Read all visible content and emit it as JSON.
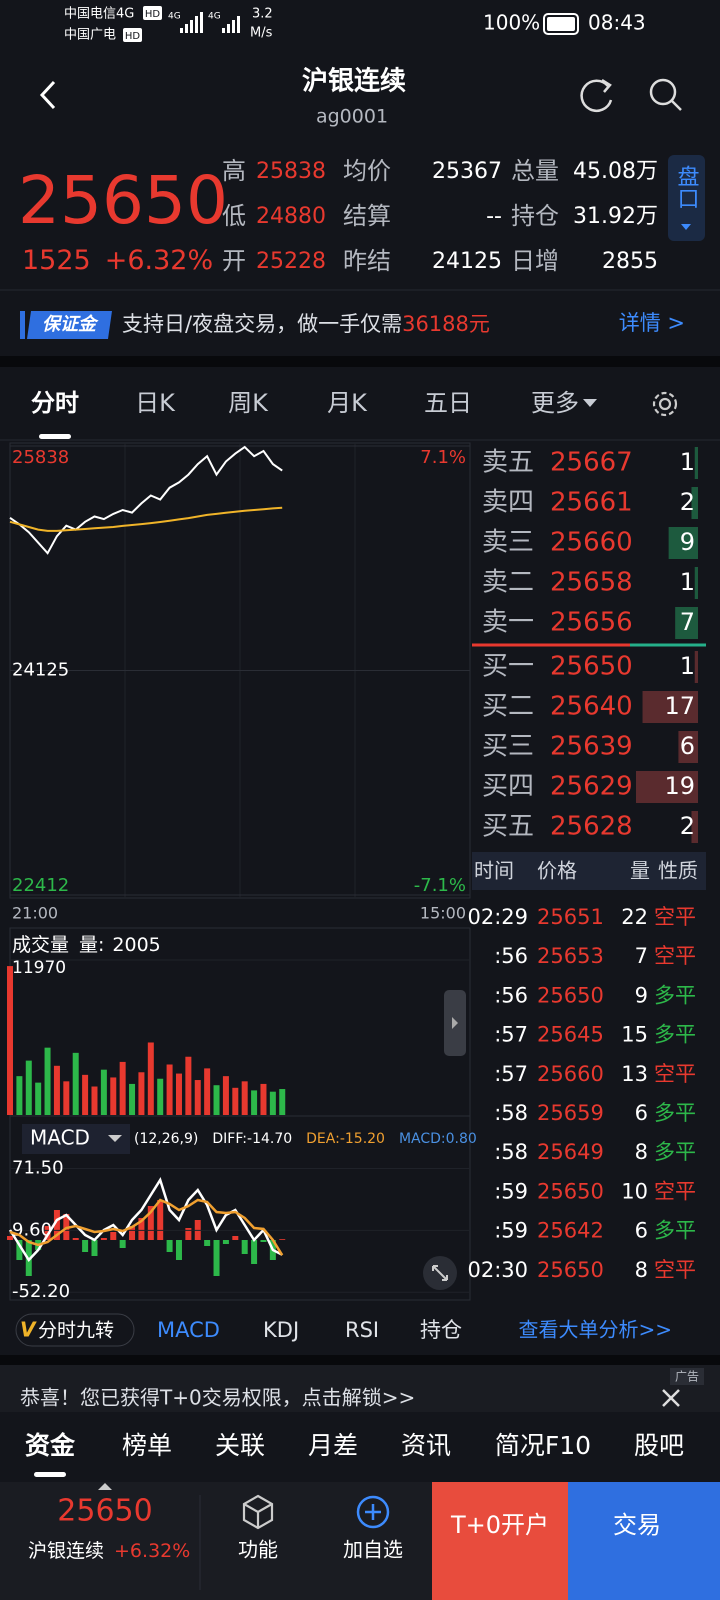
{
  "status_bar": {
    "carrier1": "中国电信4G",
    "carrier1_tag": "HD",
    "carrier2": "中国广电",
    "carrier2_tag": "HD",
    "net_speed": "3.2",
    "net_unit": "M/s",
    "battery": "100%",
    "time": "08:43"
  },
  "header": {
    "title": "沪银连续",
    "code": "ag0001"
  },
  "quote": {
    "price": 25650,
    "price_color": "#e8392f",
    "change": 1525,
    "change_pct": "+6.32%",
    "stats": [
      {
        "value_color": "#e8392f",
        "items": [
          {
            "label": "高",
            "value": 25838
          },
          {
            "label": "低",
            "value": 24880
          },
          {
            "label": "开",
            "value": 25228
          }
        ]
      },
      {
        "value_color": "#ffffff",
        "items": [
          {
            "label": "均价",
            "value": 25367
          },
          {
            "label": "结算",
            "value": "--"
          },
          {
            "label": "昨结",
            "value": 24125
          }
        ]
      },
      {
        "value_color": "#ffffff",
        "items": [
          {
            "label": "总量",
            "value": "45.08万"
          },
          {
            "label": "持仓",
            "value": "31.92万"
          },
          {
            "label": "日增",
            "value": 2855
          }
        ]
      }
    ],
    "panel_button": "盘口"
  },
  "margin_banner": {
    "badge": "保证金",
    "text": "支持日/夜盘交易，做一手仅需",
    "amount": "36188元",
    "link": "详情 >"
  },
  "tabs": {
    "items": [
      "分时",
      "日K",
      "周K",
      "月K",
      "五日",
      "更多"
    ],
    "active": 0
  },
  "charts": {
    "intraday": {
      "type": "line",
      "ylim": [
        22412,
        25838
      ],
      "yticks": [
        25838,
        24125,
        22412
      ],
      "tick_colors": [
        "#e8392f",
        "#ffffff",
        "#2db84a"
      ],
      "y2lim": [
        -7.1,
        7.1
      ],
      "y2ticks": [
        {
          "value": 7.1,
          "label": "7.1%"
        },
        {
          "value": -7.1,
          "label": "-7.1%"
        }
      ],
      "y2tick_colors": [
        "#e8392f",
        "#2db84a"
      ],
      "x_labels": [
        "21:00",
        "15:00"
      ],
      "series": [
        {
          "color": "#ffffff",
          "values": [
            25290,
            25240,
            25180,
            25100,
            25020,
            25150,
            25230,
            25200,
            25260,
            25300,
            25280,
            25320,
            25350,
            25330,
            25400,
            25460,
            25430,
            25520,
            25560,
            25620,
            25700,
            25760,
            25620,
            25720,
            25780,
            25830,
            25760,
            25800,
            25700,
            25650,
            null,
            null,
            null,
            null,
            null,
            null,
            null,
            null,
            null,
            null,
            null,
            null,
            null,
            null,
            null,
            null,
            null,
            null,
            null,
            null
          ]
        },
        {
          "color": "#f0b429",
          "values": [
            25260,
            25240,
            25220,
            25200,
            25190,
            25190,
            25195,
            25200,
            25205,
            25210,
            25215,
            25220,
            25228,
            25235,
            25242,
            25250,
            25258,
            25268,
            25278,
            25288,
            25300,
            25312,
            25320,
            25328,
            25336,
            25344,
            25350,
            25356,
            25362,
            25367,
            null,
            null,
            null,
            null,
            null,
            null,
            null,
            null,
            null,
            null,
            null,
            null,
            null,
            null,
            null,
            null,
            null,
            null,
            null,
            null
          ]
        }
      ]
    },
    "volume": {
      "type": "bar",
      "title": "成交量",
      "readout_label": "量:",
      "readout": 2005,
      "ylim": [
        0,
        11970
      ],
      "yticks": [
        11970
      ],
      "up_color": "#e8392f",
      "down_color": "#2db84a",
      "values": [
        11500,
        3000,
        4200,
        2500,
        5200,
        3800,
        2600,
        4800,
        3100,
        2200,
        3500,
        2900,
        4100,
        2400,
        3300,
        5600,
        2800,
        3900,
        3200,
        4500,
        2700,
        3600,
        2300,
        3000,
        2100,
        2600,
        1900,
        2400,
        1800,
        2005
      ]
    },
    "macd": {
      "type": "macd",
      "indicator": "MACD",
      "params": "(12,26,9)",
      "readouts": [
        {
          "text": "DIFF:-14.70",
          "color": "#ffffff"
        },
        {
          "text": "DEA:-15.20",
          "color": "#f0a030"
        },
        {
          "text": "MACD:0.80",
          "color": "#4a90e2"
        }
      ],
      "ylim": [
        -60,
        90
      ],
      "yticks": [
        {
          "value": 71.5,
          "label": "71.50"
        },
        {
          "value": 9.6,
          "label": "9.60"
        },
        {
          "value": -52.2,
          "label": "-52.20"
        }
      ],
      "up_color": "#e8392f",
      "down_color": "#2db84a",
      "diff": {
        "color": "#ffffff",
        "values": [
          10,
          -5,
          -20,
          -10,
          5,
          20,
          25,
          15,
          5,
          0,
          10,
          15,
          5,
          20,
          30,
          45,
          60,
          30,
          20,
          40,
          50,
          35,
          10,
          25,
          30,
          15,
          0,
          10,
          -10,
          -14.7
        ]
      },
      "dea": {
        "color": "#f0a030",
        "values": [
          8,
          5,
          -2,
          -5,
          -2,
          5,
          12,
          14,
          11,
          8,
          9,
          11,
          9,
          13,
          19,
          28,
          40,
          36,
          30,
          34,
          40,
          38,
          28,
          27,
          28,
          22,
          12,
          11,
          0,
          -15.2
        ]
      },
      "hist": [
        4,
        -20,
        -36,
        -10,
        14,
        30,
        26,
        2,
        -12,
        -16,
        2,
        8,
        -8,
        14,
        22,
        34,
        40,
        -12,
        -20,
        12,
        20,
        -6,
        -36,
        -4,
        4,
        -14,
        -24,
        -2,
        -20,
        0.8
      ]
    }
  },
  "order_book": {
    "price_color": "#e8392f",
    "asks": {
      "bar_color": "#1d5a3e",
      "rows": [
        {
          "label": "卖五",
          "price": 25667,
          "volume": 1
        },
        {
          "label": "卖四",
          "price": 25661,
          "volume": 2
        },
        {
          "label": "卖三",
          "price": 25660,
          "volume": 9
        },
        {
          "label": "卖二",
          "price": 25658,
          "volume": 1
        },
        {
          "label": "卖一",
          "price": 25656,
          "volume": 7
        }
      ]
    },
    "bids": {
      "bar_color": "#5a2b2e",
      "rows": [
        {
          "label": "买一",
          "price": 25650,
          "volume": 1
        },
        {
          "label": "买二",
          "price": 25640,
          "volume": 17
        },
        {
          "label": "买三",
          "price": 25639,
          "volume": 6
        },
        {
          "label": "买四",
          "price": 25629,
          "volume": 19
        },
        {
          "label": "买五",
          "price": 25628,
          "volume": 2
        }
      ]
    }
  },
  "trades": {
    "headers": [
      "时间",
      "价格",
      "量",
      "性质"
    ],
    "rows": [
      {
        "time": "02:29",
        "price": 25651,
        "volume": 22,
        "type": "空平",
        "color": "#e8392f"
      },
      {
        "time": ":56",
        "price": 25653,
        "volume": 7,
        "type": "空平",
        "color": "#e8392f"
      },
      {
        "time": ":56",
        "price": 25650,
        "volume": 9,
        "type": "多平",
        "color": "#2db84a"
      },
      {
        "time": ":57",
        "price": 25645,
        "volume": 15,
        "type": "多平",
        "color": "#2db84a"
      },
      {
        "time": ":57",
        "price": 25660,
        "volume": 13,
        "type": "空平",
        "color": "#e8392f"
      },
      {
        "time": ":58",
        "price": 25659,
        "volume": 6,
        "type": "多平",
        "color": "#2db84a"
      },
      {
        "time": ":58",
        "price": 25649,
        "volume": 8,
        "type": "多平",
        "color": "#2db84a"
      },
      {
        "time": ":59",
        "price": 25650,
        "volume": 10,
        "type": "空平",
        "color": "#e8392f"
      },
      {
        "time": ":59",
        "price": 25642,
        "volume": 6,
        "type": "多平",
        "color": "#2db84a"
      },
      {
        "time": "02:30",
        "price": 25650,
        "volume": 8,
        "type": "空平",
        "color": "#e8392f"
      }
    ]
  },
  "indicator_bar": {
    "special_icon": "V",
    "special_text": "分时九转",
    "items": [
      "MACD",
      "KDJ",
      "RSI",
      "持仓"
    ],
    "active": 0,
    "link": "查看大单分析>>"
  },
  "ad": {
    "tag": "广告",
    "text": "恭喜！您已获得T+0交易权限，点击解锁>>"
  },
  "bottom_tabs": {
    "items": [
      "资金",
      "榜单",
      "关联",
      "月差",
      "资讯",
      "简况F10",
      "股吧"
    ],
    "active": 0
  },
  "footer": {
    "price": 25650,
    "name": "沪银连续",
    "change_pct": "+6.32%",
    "buttons": [
      "功能",
      "加自选"
    ],
    "open_account": "T+0开户",
    "trade": "交易"
  }
}
